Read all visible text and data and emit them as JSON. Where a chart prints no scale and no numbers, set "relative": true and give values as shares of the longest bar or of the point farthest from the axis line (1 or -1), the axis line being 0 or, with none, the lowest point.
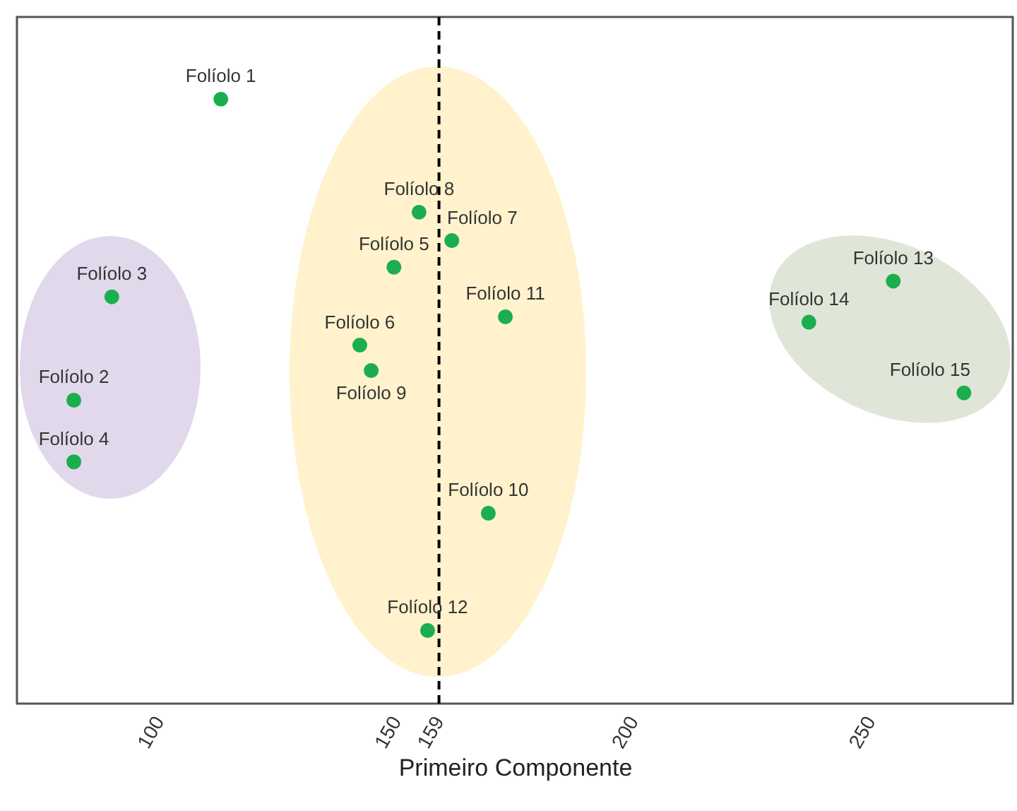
{
  "chart_data": {
    "type": "scatter",
    "xlabel": "Primeiro Componente",
    "relative": true,
    "marker": "circle",
    "grid": false,
    "xlim": [
      70,
      280
    ],
    "xticks": [
      100,
      150,
      159,
      200,
      250
    ],
    "x": [
      113,
      82,
      90,
      82,
      149.5,
      142.3,
      161.7,
      154.8,
      144.7,
      169.4,
      173,
      156.6,
      254.8,
      237,
      269.7
    ],
    "series": [
      {
        "color": "#1aae4e",
        "values": [
          1,
          0.502,
          0.673,
          0.4,
          0.722,
          0.593,
          0.766,
          0.813,
          0.551,
          0.315,
          0.64,
          0.121,
          0.699,
          0.631,
          0.514
        ]
      }
    ],
    "ref_lines": [
      {
        "axis": "x",
        "value": 159,
        "color": "#000000",
        "line_style": "dashed"
      }
    ],
    "annotations": [
      {
        "text": "Folíolo 1",
        "x": 113,
        "y": 1
      },
      {
        "text": "Folíolo 2",
        "x": 82,
        "y": 0.502
      },
      {
        "text": "Folíolo 3",
        "x": 90,
        "y": 0.673
      },
      {
        "text": "Folíolo 4",
        "x": 82,
        "y": 0.4
      },
      {
        "text": "Folíolo 5",
        "x": 149.5,
        "y": 0.722
      },
      {
        "text": "Folíolo 6",
        "x": 142.3,
        "y": 0.593
      },
      {
        "text": "Folíolo 7",
        "x": 161.7,
        "y": 0.766
      },
      {
        "text": "Folíolo 8",
        "x": 154.8,
        "y": 0.813
      },
      {
        "text": "Folíolo 9",
        "x": 144.7,
        "y": 0.551
      },
      {
        "text": "Folíolo 10",
        "x": 169.4,
        "y": 0.315
      },
      {
        "text": "Folíolo 11",
        "x": 173,
        "y": 0.64
      },
      {
        "text": "Folíolo 12",
        "x": 156.6,
        "y": 0.121
      },
      {
        "text": "Folíolo 13",
        "x": 254.8,
        "y": 0.699
      },
      {
        "text": "Folíolo 14",
        "x": 237,
        "y": 0.631
      },
      {
        "text": "Folíolo 15",
        "x": 269.7,
        "y": 0.514
      }
    ]
  }
}
